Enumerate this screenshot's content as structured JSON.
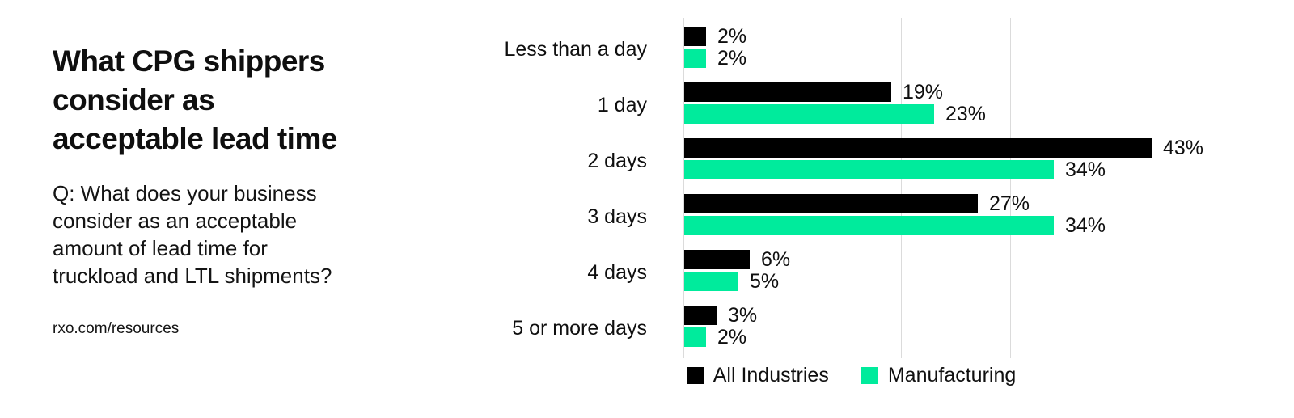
{
  "colors": {
    "background": "#ffffff",
    "text": "#0f0f0f",
    "gridline": "#dbdbdb",
    "all_industries": "#000000",
    "manufacturing": "#00EB9C"
  },
  "left_panel": {
    "title_lines": [
      "What CPG shippers",
      "consider as",
      "acceptable lead time"
    ],
    "question_lines": [
      "Q: What does your business",
      "consider as an acceptable",
      "amount of lead time for",
      "truckload and LTL shipments?"
    ],
    "source_url": "rxo.com/resources"
  },
  "chart_data": {
    "type": "bar",
    "orientation": "horizontal",
    "title": "What CPG shippers consider as acceptable lead time",
    "categories": [
      "Less than a day",
      "1 day",
      "2 days",
      "3 days",
      "4 days",
      "5 or more days"
    ],
    "series": [
      {
        "name": "All Industries",
        "color": "#000000",
        "values": [
          2,
          19,
          43,
          27,
          6,
          3
        ]
      },
      {
        "name": "Manufacturing",
        "color": "#00EB9C",
        "values": [
          2,
          23,
          34,
          34,
          5,
          2
        ]
      }
    ],
    "value_suffix": "%",
    "xlim": [
      0,
      50
    ],
    "gridline_step": 10,
    "grid": true,
    "legend_position": "bottom"
  }
}
